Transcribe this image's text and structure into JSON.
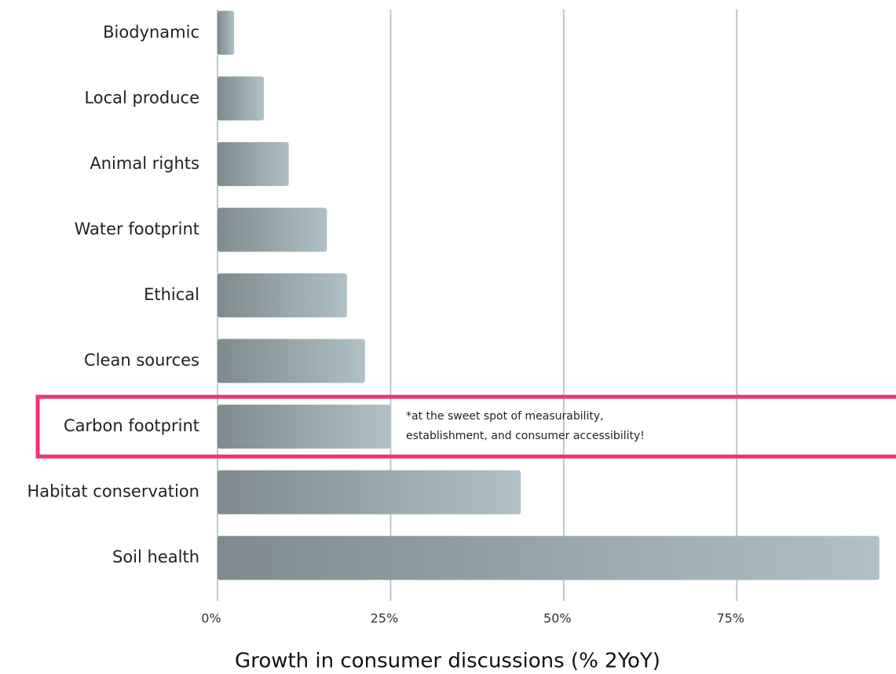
{
  "chart_data": {
    "type": "hbar",
    "categories": [
      "Biodynamic",
      "Local produce",
      "Animal rights",
      "Water footprint",
      "Ethical",
      "Clean sources",
      "Carbon footprint",
      "Habitat conservation",
      "Soil health"
    ],
    "values": [
      2.4,
      6.7,
      10.3,
      15.8,
      18.7,
      21.3,
      25,
      43.8,
      95.6
    ],
    "color_start": "#7e8a8e",
    "color_end": "#afc1c6",
    "xlim": [
      0,
      98
    ],
    "xticks": [
      {
        "value": 0,
        "label": "0%"
      },
      {
        "value": 25,
        "label": "25%"
      },
      {
        "value": 50,
        "label": "50%"
      },
      {
        "value": 75,
        "label": "75%"
      }
    ],
    "grid": true,
    "xlabel": "Growth in consumer discussions (% 2YoY)",
    "highlight": 6,
    "highlight_color": "#f0336e",
    "annotation": [
      "*at the sweet spot of measurability,",
      "establishment, and consumer accessibility!"
    ]
  }
}
